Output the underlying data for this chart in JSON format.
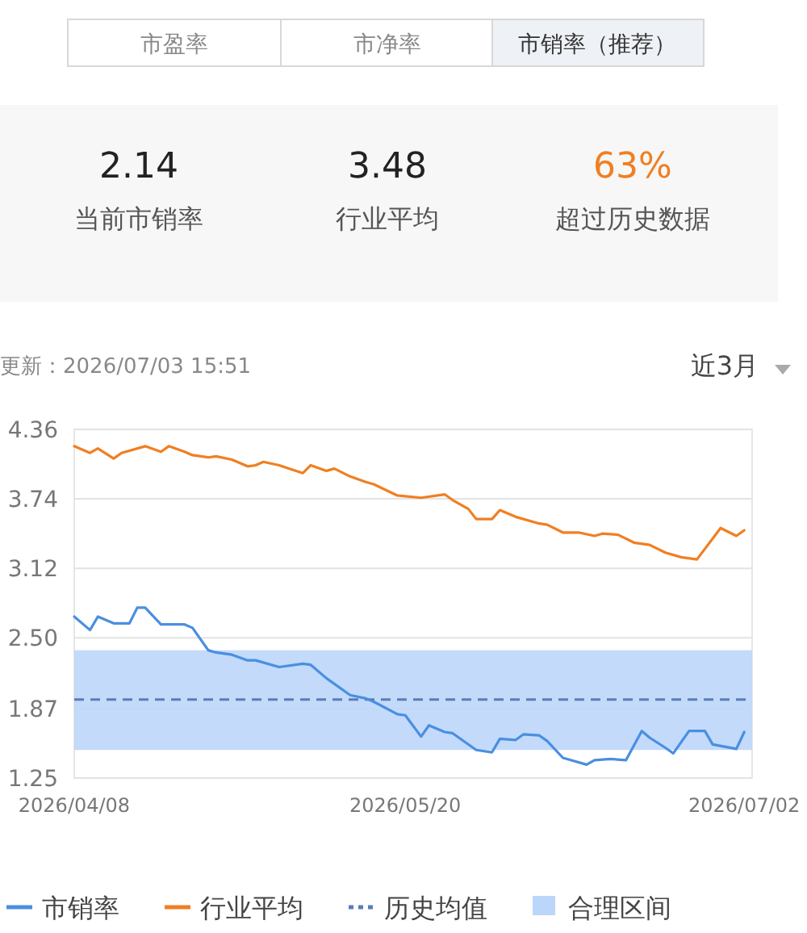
{
  "chart_data": {
    "type": "line",
    "annotations": [
      "市盈率",
      "市净率",
      "市销率（推荐）",
      "2.14",
      "当前市销率",
      "3.48",
      "行业平均",
      "63%",
      "超过历史数据",
      "更新：2026/07/03 15:51",
      "近3月"
    ],
    "xlim": [
      "2026-04-08",
      "2026-07-03"
    ],
    "xticks": [
      {
        "value": "2026-04-08",
        "label": "2026/04/08"
      },
      {
        "value": "2026-05-20",
        "label": "2026/05/20"
      },
      {
        "value": "2026-07-02",
        "label": "2026/07/02"
      }
    ],
    "ylim": [
      1.25,
      4.36
    ],
    "yticks": [
      1.25,
      1.87,
      {
        "value": 2.5,
        "label": "2.50"
      },
      3.12,
      3.74,
      4.36
    ],
    "grid": "y",
    "legend": "bottom",
    "series": [
      {
        "name": "市销率",
        "color": "#4a8fe0",
        "x": [
          "2026-04-08",
          "2026-04-10",
          "2026-04-11",
          "2026-04-13",
          "2026-04-15",
          "2026-04-16",
          "2026-04-17",
          "2026-04-19",
          "2026-04-22",
          "2026-04-23",
          "2026-04-25",
          "2026-04-26",
          "2026-04-28",
          "2026-04-30",
          "2026-05-01",
          "2026-05-04",
          "2026-05-07",
          "2026-05-08",
          "2026-05-10",
          "2026-05-13",
          "2026-05-15",
          "2026-05-16",
          "2026-05-19",
          "2026-05-20",
          "2026-05-22",
          "2026-05-23",
          "2026-05-25",
          "2026-05-26",
          "2026-05-29",
          "2026-05-31",
          "2026-06-01",
          "2026-06-03",
          "2026-06-04",
          "2026-06-06",
          "2026-06-07",
          "2026-06-09",
          "2026-06-10",
          "2026-06-12",
          "2026-06-13",
          "2026-06-15",
          "2026-06-17",
          "2026-06-19",
          "2026-06-20",
          "2026-06-22",
          "2026-06-23",
          "2026-06-25",
          "2026-06-27",
          "2026-06-28",
          "2026-07-01",
          "2026-07-02"
        ],
        "values": [
          2.69,
          2.57,
          2.69,
          2.63,
          2.63,
          2.77,
          2.77,
          2.62,
          2.62,
          2.59,
          2.39,
          2.37,
          2.35,
          2.3,
          2.3,
          2.24,
          2.27,
          2.26,
          2.14,
          1.99,
          1.96,
          1.93,
          1.82,
          1.81,
          1.62,
          1.72,
          1.66,
          1.65,
          1.5,
          1.48,
          1.6,
          1.59,
          1.64,
          1.63,
          1.58,
          1.43,
          1.41,
          1.37,
          1.41,
          1.42,
          1.41,
          1.67,
          1.61,
          1.52,
          1.47,
          1.67,
          1.67,
          1.55,
          1.51,
          1.66
        ]
      },
      {
        "name": "行业平均",
        "color": "#f07f22",
        "x": [
          "2026-04-08",
          "2026-04-10",
          "2026-04-11",
          "2026-04-13",
          "2026-04-14",
          "2026-04-17",
          "2026-04-19",
          "2026-04-20",
          "2026-04-22",
          "2026-04-23",
          "2026-04-25",
          "2026-04-26",
          "2026-04-28",
          "2026-04-30",
          "2026-05-01",
          "2026-05-02",
          "2026-05-04",
          "2026-05-07",
          "2026-05-08",
          "2026-05-10",
          "2026-05-11",
          "2026-05-13",
          "2026-05-15",
          "2026-05-16",
          "2026-05-19",
          "2026-05-22",
          "2026-05-25",
          "2026-05-26",
          "2026-05-28",
          "2026-05-29",
          "2026-05-31",
          "2026-06-01",
          "2026-06-03",
          "2026-06-06",
          "2026-06-07",
          "2026-06-09",
          "2026-06-11",
          "2026-06-13",
          "2026-06-14",
          "2026-06-16",
          "2026-06-18",
          "2026-06-20",
          "2026-06-22",
          "2026-06-24",
          "2026-06-26",
          "2026-06-29",
          "2026-07-01",
          "2026-07-02"
        ],
        "values": [
          4.21,
          4.15,
          4.19,
          4.1,
          4.15,
          4.21,
          4.16,
          4.21,
          4.16,
          4.13,
          4.11,
          4.12,
          4.09,
          4.03,
          4.04,
          4.07,
          4.04,
          3.97,
          4.04,
          3.99,
          4.01,
          3.94,
          3.89,
          3.87,
          3.77,
          3.75,
          3.78,
          3.73,
          3.65,
          3.56,
          3.56,
          3.64,
          3.58,
          3.52,
          3.51,
          3.44,
          3.44,
          3.41,
          3.43,
          3.42,
          3.35,
          3.33,
          3.26,
          3.22,
          3.2,
          3.48,
          3.41,
          3.46
        ]
      }
    ],
    "ref_lines": [
      {
        "axis": "y",
        "value": 1.95,
        "label": "历史均值",
        "color": "#5b7db8",
        "line_style": "dashed"
      }
    ],
    "bands": [
      {
        "axis": "y",
        "from": 1.5,
        "to": 2.39,
        "label": "合理区间",
        "color": "#bcd6fb"
      }
    ]
  }
}
